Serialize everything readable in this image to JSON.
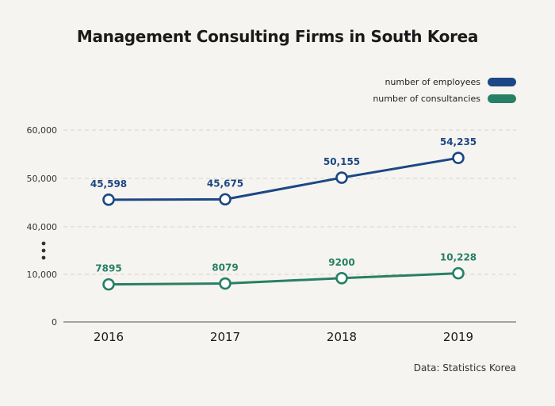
{
  "chart_data": {
    "type": "line",
    "title": "Management Consulting Firms in South Korea",
    "categories": [
      "2016",
      "2017",
      "2018",
      "2019"
    ],
    "y_ticks": [
      "0",
      "10,000",
      "40,000",
      "50,000",
      "60,000"
    ],
    "axis_break": true,
    "series": [
      {
        "name": "number of employees",
        "color": "#1c4784",
        "values": [
          45598,
          45675,
          50155,
          54235
        ],
        "labels": [
          "45,598",
          "45,675",
          "50,155",
          "54,235"
        ]
      },
      {
        "name": "number of consultancies",
        "color": "#268065",
        "values": [
          7895,
          8079,
          9200,
          10228
        ],
        "labels": [
          "7895",
          "8079",
          "9200",
          "10,228"
        ]
      }
    ],
    "legend_position": "top-right",
    "source": "Data: Statistics Korea"
  }
}
